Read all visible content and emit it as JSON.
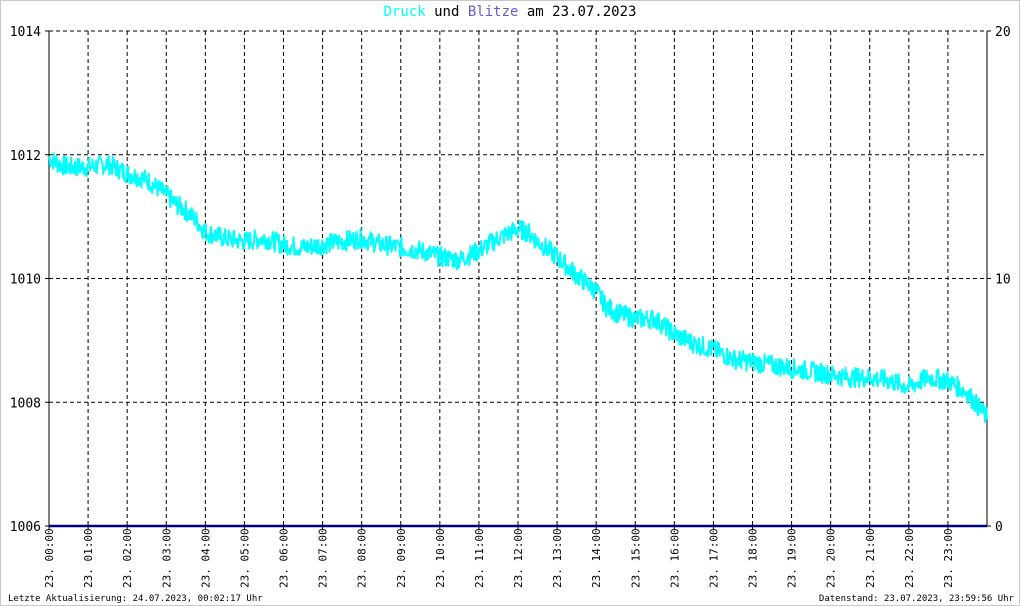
{
  "title": {
    "part1": "Druck",
    "part2": " und ",
    "part3": "Blitze",
    "part4": " am 23.07.2023",
    "color1": "#00ffff",
    "color3": "#6a5acd"
  },
  "footer": {
    "left": "Letzte Aktualisierung: 24.07.2023, 00:02:17 Uhr",
    "right": "Datenstand: 23.07.2023, 23:59:56 Uhr"
  },
  "chart_data": {
    "type": "line",
    "title": "Druck und Blitze am 23.07.2023",
    "x_ticks": [
      "23. 00:00",
      "23. 01:00",
      "23. 02:00",
      "23. 03:00",
      "23. 04:00",
      "23. 05:00",
      "23. 06:00",
      "23. 07:00",
      "23. 08:00",
      "23. 09:00",
      "23. 10:00",
      "23. 11:00",
      "23. 12:00",
      "23. 13:00",
      "23. 14:00",
      "23. 15:00",
      "23. 16:00",
      "23. 17:00",
      "23. 18:00",
      "23. 19:00",
      "23. 20:00",
      "23. 21:00",
      "23. 22:00",
      "23. 23:00"
    ],
    "xlim_hours": [
      0,
      24
    ],
    "y_left": {
      "ticks": [
        "1006",
        "1008",
        "1010",
        "1012",
        "1014"
      ],
      "ylim": [
        1006,
        1014
      ]
    },
    "y_right": {
      "ticks": [
        "0",
        "10",
        "20"
      ],
      "ylim": [
        0,
        20
      ]
    },
    "grid": true,
    "series": [
      {
        "name": "Druck",
        "axis": "left",
        "color": "#00ffff",
        "x_hours": [
          0,
          0.25,
          0.5,
          1,
          1.5,
          2,
          2.5,
          3,
          3.25,
          3.5,
          3.75,
          4,
          4.5,
          5,
          5.5,
          6,
          6.5,
          7,
          7.5,
          8,
          8.5,
          9,
          9.5,
          10,
          10.5,
          11,
          11.5,
          12,
          12.25,
          12.5,
          13,
          13.5,
          14,
          14.25,
          14.5,
          15,
          15.5,
          16,
          16.5,
          17,
          17.5,
          18,
          18.5,
          19,
          19.5,
          20,
          20.5,
          21,
          21.5,
          22,
          22.5,
          23,
          23.5,
          24
        ],
        "values": [
          1011.95,
          1011.85,
          1011.8,
          1011.8,
          1011.85,
          1011.7,
          1011.6,
          1011.35,
          1011.2,
          1011.1,
          1010.95,
          1010.75,
          1010.65,
          1010.6,
          1010.65,
          1010.55,
          1010.5,
          1010.55,
          1010.6,
          1010.65,
          1010.55,
          1010.5,
          1010.45,
          1010.35,
          1010.3,
          1010.45,
          1010.65,
          1010.8,
          1010.75,
          1010.6,
          1010.35,
          1010.05,
          1009.8,
          1009.55,
          1009.45,
          1009.35,
          1009.35,
          1009.1,
          1008.95,
          1008.85,
          1008.7,
          1008.65,
          1008.6,
          1008.55,
          1008.5,
          1008.45,
          1008.4,
          1008.4,
          1008.35,
          1008.25,
          1008.4,
          1008.35,
          1008.15,
          1007.75
        ]
      },
      {
        "name": "Blitze",
        "axis": "right",
        "color": "#000080",
        "x_hours": [
          0,
          24
        ],
        "values": [
          0,
          0
        ]
      }
    ]
  }
}
